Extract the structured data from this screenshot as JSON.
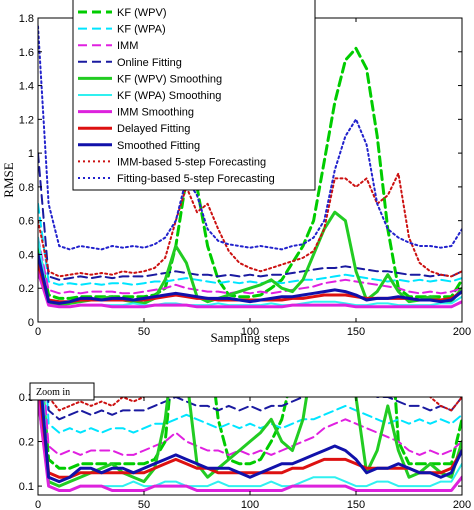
{
  "chart_data": [
    {
      "type": "line",
      "xlabel": "Sampling steps",
      "ylabel": "RMSE",
      "xlim": [
        0,
        200
      ],
      "ylim": [
        0,
        1.8
      ],
      "xticks": [
        0,
        50,
        100,
        150,
        200
      ],
      "xtick_labels": [
        "0",
        "50",
        "100",
        "150",
        "200"
      ],
      "yticks": [
        0,
        0.2,
        0.4,
        0.6,
        0.8,
        1,
        1.2,
        1.4,
        1.6,
        1.8
      ],
      "ytick_labels": [
        "0",
        "0.2",
        "0.4",
        "0.6",
        "0.8",
        "1",
        "1.2",
        "1.4",
        "1.6",
        "1.8"
      ],
      "legend_position": "top-left",
      "series": [
        {
          "name": "KF (WPV)",
          "color": "#00cc00",
          "dash": "dashed",
          "width": 3,
          "x": [
            0,
            5,
            10,
            15,
            20,
            25,
            30,
            35,
            40,
            45,
            50,
            55,
            60,
            65,
            70,
            75,
            80,
            85,
            90,
            95,
            100,
            105,
            110,
            115,
            120,
            125,
            130,
            135,
            140,
            145,
            150,
            155,
            160,
            165,
            170,
            175,
            180,
            185,
            190,
            195,
            200
          ],
          "y": [
            0.45,
            0.16,
            0.14,
            0.14,
            0.15,
            0.15,
            0.15,
            0.15,
            0.15,
            0.15,
            0.15,
            0.16,
            0.2,
            0.45,
            0.85,
            0.8,
            0.45,
            0.25,
            0.16,
            0.15,
            0.15,
            0.16,
            0.2,
            0.25,
            0.35,
            0.45,
            0.6,
            0.95,
            1.3,
            1.55,
            1.62,
            1.5,
            1.1,
            0.55,
            0.2,
            0.15,
            0.15,
            0.15,
            0.15,
            0.15,
            0.25
          ]
        },
        {
          "name": "KF (WPA)",
          "color": "#00e5ff",
          "dash": "dashed",
          "width": 2,
          "x": [
            0,
            5,
            10,
            15,
            20,
            25,
            30,
            35,
            40,
            45,
            50,
            55,
            60,
            65,
            70,
            75,
            80,
            85,
            90,
            95,
            100,
            105,
            110,
            115,
            120,
            125,
            130,
            135,
            140,
            145,
            150,
            155,
            160,
            165,
            170,
            175,
            180,
            185,
            190,
            195,
            200
          ],
          "y": [
            0.7,
            0.24,
            0.22,
            0.23,
            0.22,
            0.23,
            0.22,
            0.23,
            0.23,
            0.22,
            0.23,
            0.24,
            0.24,
            0.25,
            0.26,
            0.25,
            0.24,
            0.23,
            0.24,
            0.23,
            0.24,
            0.23,
            0.24,
            0.23,
            0.24,
            0.25,
            0.25,
            0.26,
            0.27,
            0.28,
            0.27,
            0.26,
            0.25,
            0.24,
            0.25,
            0.24,
            0.25,
            0.24,
            0.25,
            0.24,
            0.26
          ]
        },
        {
          "name": "IMM",
          "color": "#e020e0",
          "dash": "dashed",
          "width": 2,
          "x": [
            0,
            5,
            10,
            15,
            20,
            25,
            30,
            35,
            40,
            45,
            50,
            55,
            60,
            65,
            70,
            75,
            80,
            85,
            90,
            95,
            100,
            105,
            110,
            115,
            120,
            125,
            130,
            135,
            140,
            145,
            150,
            155,
            160,
            165,
            170,
            175,
            180,
            185,
            190,
            195,
            200
          ],
          "y": [
            0.5,
            0.19,
            0.17,
            0.18,
            0.17,
            0.18,
            0.18,
            0.18,
            0.17,
            0.17,
            0.18,
            0.19,
            0.2,
            0.22,
            0.2,
            0.19,
            0.18,
            0.18,
            0.17,
            0.18,
            0.17,
            0.18,
            0.17,
            0.18,
            0.19,
            0.2,
            0.21,
            0.23,
            0.24,
            0.25,
            0.24,
            0.23,
            0.22,
            0.21,
            0.2,
            0.18,
            0.17,
            0.18,
            0.17,
            0.18,
            0.2
          ]
        },
        {
          "name": "Online Fitting",
          "color": "#1a1aa0",
          "dash": "dashed",
          "width": 2,
          "x": [
            0,
            5,
            10,
            15,
            20,
            25,
            30,
            35,
            40,
            45,
            50,
            55,
            60,
            65,
            70,
            75,
            80,
            85,
            90,
            95,
            100,
            105,
            110,
            115,
            120,
            125,
            130,
            135,
            140,
            145,
            150,
            155,
            160,
            165,
            170,
            175,
            180,
            185,
            190,
            195,
            200
          ],
          "y": [
            1.0,
            0.27,
            0.25,
            0.26,
            0.27,
            0.26,
            0.27,
            0.26,
            0.27,
            0.27,
            0.27,
            0.28,
            0.29,
            0.3,
            0.29,
            0.28,
            0.28,
            0.27,
            0.28,
            0.27,
            0.28,
            0.27,
            0.28,
            0.28,
            0.29,
            0.3,
            0.31,
            0.32,
            0.32,
            0.33,
            0.32,
            0.31,
            0.3,
            0.3,
            0.29,
            0.28,
            0.28,
            0.27,
            0.28,
            0.27,
            0.3
          ]
        },
        {
          "name": "KF (WPV) Smoothing",
          "color": "#22cc22",
          "dash": "solid",
          "width": 3,
          "x": [
            0,
            5,
            10,
            15,
            20,
            25,
            30,
            35,
            40,
            45,
            50,
            55,
            60,
            65,
            70,
            75,
            80,
            85,
            90,
            95,
            100,
            105,
            110,
            115,
            120,
            125,
            130,
            135,
            140,
            145,
            150,
            155,
            160,
            165,
            170,
            175,
            180,
            185,
            190,
            195,
            200
          ],
          "y": [
            0.3,
            0.11,
            0.1,
            0.11,
            0.12,
            0.13,
            0.14,
            0.15,
            0.13,
            0.12,
            0.11,
            0.14,
            0.25,
            0.45,
            0.35,
            0.15,
            0.12,
            0.14,
            0.16,
            0.18,
            0.2,
            0.22,
            0.25,
            0.2,
            0.18,
            0.25,
            0.4,
            0.55,
            0.65,
            0.6,
            0.3,
            0.13,
            0.18,
            0.28,
            0.18,
            0.12,
            0.13,
            0.15,
            0.13,
            0.12,
            0.2
          ]
        },
        {
          "name": "KF (WPA) Smoothing",
          "color": "#30f0f0",
          "dash": "solid",
          "width": 2,
          "x": [
            0,
            5,
            10,
            15,
            20,
            25,
            30,
            35,
            40,
            45,
            50,
            55,
            60,
            65,
            70,
            75,
            80,
            85,
            90,
            95,
            100,
            105,
            110,
            115,
            120,
            125,
            130,
            135,
            140,
            145,
            150,
            155,
            160,
            165,
            170,
            175,
            180,
            185,
            190,
            195,
            200
          ],
          "y": [
            0.5,
            0.1,
            0.09,
            0.09,
            0.1,
            0.1,
            0.1,
            0.1,
            0.1,
            0.11,
            0.1,
            0.1,
            0.11,
            0.11,
            0.1,
            0.1,
            0.1,
            0.11,
            0.1,
            0.1,
            0.1,
            0.1,
            0.11,
            0.1,
            0.1,
            0.11,
            0.12,
            0.12,
            0.12,
            0.11,
            0.1,
            0.1,
            0.11,
            0.11,
            0.1,
            0.1,
            0.1,
            0.1,
            0.11,
            0.11,
            0.15
          ]
        },
        {
          "name": "IMM Smoothing",
          "color": "#dd22dd",
          "dash": "solid",
          "width": 3,
          "x": [
            0,
            5,
            10,
            15,
            20,
            25,
            30,
            35,
            40,
            45,
            50,
            55,
            60,
            65,
            70,
            75,
            80,
            85,
            90,
            95,
            100,
            105,
            110,
            115,
            120,
            125,
            130,
            135,
            140,
            145,
            150,
            155,
            160,
            165,
            170,
            175,
            180,
            185,
            190,
            195,
            200
          ],
          "y": [
            0.3,
            0.1,
            0.09,
            0.09,
            0.1,
            0.1,
            0.1,
            0.09,
            0.09,
            0.09,
            0.09,
            0.1,
            0.1,
            0.1,
            0.1,
            0.09,
            0.09,
            0.09,
            0.09,
            0.09,
            0.09,
            0.09,
            0.09,
            0.09,
            0.1,
            0.1,
            0.1,
            0.1,
            0.1,
            0.1,
            0.09,
            0.09,
            0.09,
            0.09,
            0.09,
            0.09,
            0.09,
            0.09,
            0.09,
            0.09,
            0.12
          ]
        },
        {
          "name": "Delayed Fitting",
          "color": "#dd1111",
          "dash": "solid",
          "width": 3,
          "x": [
            0,
            5,
            10,
            15,
            20,
            25,
            30,
            35,
            40,
            45,
            50,
            55,
            60,
            65,
            70,
            75,
            80,
            85,
            90,
            95,
            100,
            105,
            110,
            115,
            120,
            125,
            130,
            135,
            140,
            145,
            150,
            155,
            160,
            165,
            170,
            175,
            180,
            185,
            190,
            195,
            200
          ],
          "y": [
            0.35,
            0.13,
            0.12,
            0.12,
            0.13,
            0.13,
            0.13,
            0.13,
            0.13,
            0.13,
            0.13,
            0.14,
            0.15,
            0.16,
            0.15,
            0.14,
            0.14,
            0.13,
            0.13,
            0.13,
            0.13,
            0.13,
            0.13,
            0.13,
            0.14,
            0.14,
            0.15,
            0.16,
            0.16,
            0.16,
            0.15,
            0.14,
            0.14,
            0.14,
            0.14,
            0.14,
            0.13,
            0.13,
            0.13,
            0.14,
            0.18
          ]
        },
        {
          "name": "Smoothed Fitting",
          "color": "#1111aa",
          "dash": "solid",
          "width": 3,
          "x": [
            0,
            5,
            10,
            15,
            20,
            25,
            30,
            35,
            40,
            45,
            50,
            55,
            60,
            65,
            70,
            75,
            80,
            85,
            90,
            95,
            100,
            105,
            110,
            115,
            120,
            125,
            130,
            135,
            140,
            145,
            150,
            155,
            160,
            165,
            170,
            175,
            180,
            185,
            190,
            195,
            200
          ],
          "y": [
            0.4,
            0.12,
            0.11,
            0.12,
            0.14,
            0.14,
            0.13,
            0.14,
            0.14,
            0.13,
            0.14,
            0.15,
            0.16,
            0.17,
            0.16,
            0.15,
            0.14,
            0.14,
            0.14,
            0.13,
            0.12,
            0.13,
            0.14,
            0.15,
            0.15,
            0.16,
            0.17,
            0.18,
            0.19,
            0.18,
            0.16,
            0.13,
            0.14,
            0.14,
            0.15,
            0.14,
            0.13,
            0.13,
            0.12,
            0.13,
            0.18
          ]
        },
        {
          "name": "IMM-based 5-step Forecasting",
          "color": "#cc1111",
          "dash": "dotted",
          "width": 2,
          "x": [
            0,
            5,
            10,
            15,
            20,
            25,
            30,
            35,
            40,
            45,
            50,
            55,
            60,
            65,
            70,
            75,
            80,
            85,
            90,
            95,
            100,
            105,
            110,
            115,
            120,
            125,
            130,
            135,
            140,
            145,
            150,
            155,
            160,
            165,
            170,
            175,
            180,
            185,
            190,
            195,
            200
          ],
          "y": [
            0.6,
            0.3,
            0.27,
            0.28,
            0.29,
            0.28,
            0.29,
            0.28,
            0.3,
            0.29,
            0.3,
            0.32,
            0.38,
            0.6,
            0.8,
            0.65,
            0.7,
            0.55,
            0.42,
            0.35,
            0.32,
            0.3,
            0.32,
            0.34,
            0.36,
            0.38,
            0.42,
            0.55,
            0.85,
            0.85,
            0.8,
            0.85,
            0.7,
            0.75,
            0.88,
            0.5,
            0.35,
            0.3,
            0.28,
            0.27,
            0.3
          ]
        },
        {
          "name": "Fitting-based 5-step Forecasting",
          "color": "#2222cc",
          "dash": "dotted",
          "width": 2,
          "x": [
            0,
            5,
            10,
            15,
            20,
            25,
            30,
            35,
            40,
            45,
            50,
            55,
            60,
            65,
            70,
            75,
            80,
            85,
            90,
            95,
            100,
            105,
            110,
            115,
            120,
            125,
            130,
            135,
            140,
            145,
            150,
            155,
            160,
            165,
            170,
            175,
            180,
            185,
            190,
            195,
            200
          ],
          "y": [
            1.75,
            0.7,
            0.45,
            0.43,
            0.45,
            0.44,
            0.43,
            0.45,
            0.44,
            0.45,
            0.44,
            0.46,
            0.5,
            0.6,
            0.85,
            0.75,
            0.55,
            0.48,
            0.46,
            0.45,
            0.44,
            0.45,
            0.44,
            0.43,
            0.45,
            0.46,
            0.5,
            0.6,
            0.9,
            1.1,
            1.2,
            1.05,
            0.7,
            0.55,
            0.5,
            0.47,
            0.45,
            0.45,
            0.44,
            0.45,
            0.55
          ]
        }
      ],
      "legend": {
        "entries": [
          "KF (WPV)",
          "KF (WPA)",
          "IMM",
          "Online Fitting",
          "KF (WPV) Smoothing",
          "KF (WPA) Smoothing",
          "IMM Smoothing",
          "Delayed Fitting",
          "Smoothed Fitting",
          "IMM-based 5-step Forecasting",
          "Fitting-based 5-step Forecasting"
        ]
      }
    },
    {
      "type": "line",
      "annotation": "Zoom in",
      "xlim": [
        0,
        200
      ],
      "ylim": [
        0.08,
        0.3
      ],
      "xticks": [
        0,
        50,
        100,
        150,
        200
      ],
      "xtick_labels": [
        "0",
        "50",
        "100",
        "150",
        "200"
      ],
      "yticks": [
        0.1,
        0.2,
        0.3
      ],
      "ytick_labels": [
        "0.1",
        "0.2",
        "0.3"
      ]
    }
  ]
}
